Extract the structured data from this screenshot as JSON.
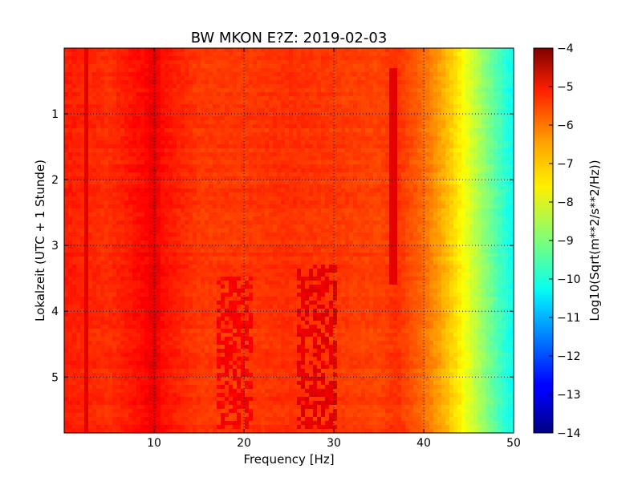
{
  "chart_data": {
    "type": "heatmap",
    "title": "BW MKON E?Z: 2019-02-03",
    "xlabel": "Frequency [Hz]",
    "ylabel": "Lokalzeit (UTC + 1 Stunde)",
    "xlim": [
      0,
      50
    ],
    "ylim": [
      5.85,
      0
    ],
    "x_ticks": [
      10,
      20,
      30,
      40,
      50
    ],
    "x_tick_labels": [
      "10",
      "20",
      "30",
      "40",
      "50"
    ],
    "y_ticks": [
      1,
      2,
      3,
      4,
      5
    ],
    "y_tick_labels": [
      "1",
      "2",
      "3",
      "4",
      "5"
    ],
    "grid": true,
    "colormap": "jet",
    "colorbar": {
      "label": "Log10(Sqrt(m**2/s**2/Hz))",
      "range": [
        -14,
        -4
      ],
      "ticks": [
        -4,
        -5,
        -6,
        -7,
        -8,
        -9,
        -10,
        -11,
        -12,
        -13,
        -14
      ],
      "tick_labels": [
        "−4",
        "−5",
        "−6",
        "−7",
        "−8",
        "−9",
        "−10",
        "−11",
        "−12",
        "−13",
        "−14"
      ]
    },
    "spectrum_profile": {
      "frequency": [
        0,
        5,
        9,
        10,
        11,
        15,
        20,
        25,
        30,
        35,
        37,
        40,
        42,
        44,
        46,
        48,
        50
      ],
      "level": [
        -5.5,
        -5.7,
        -5.3,
        -5.0,
        -5.4,
        -5.8,
        -5.8,
        -5.7,
        -5.8,
        -5.9,
        -5.7,
        -6.3,
        -6.9,
        -7.6,
        -8.5,
        -9.4,
        -10.2
      ]
    },
    "features": [
      {
        "type": "vertical-line",
        "frequency": 2.5,
        "level": -5.0
      },
      {
        "type": "vertical-line",
        "frequency": 36.5,
        "level": -5.0,
        "from": 0.3,
        "to": 3.6
      },
      {
        "type": "noise-patch",
        "frequency": 19,
        "from": 3.5,
        "to": 5.8,
        "level": -5.2
      },
      {
        "type": "noise-patch",
        "frequency": 28,
        "from": 3.3,
        "to": 5.8,
        "level": -5.0
      }
    ]
  }
}
